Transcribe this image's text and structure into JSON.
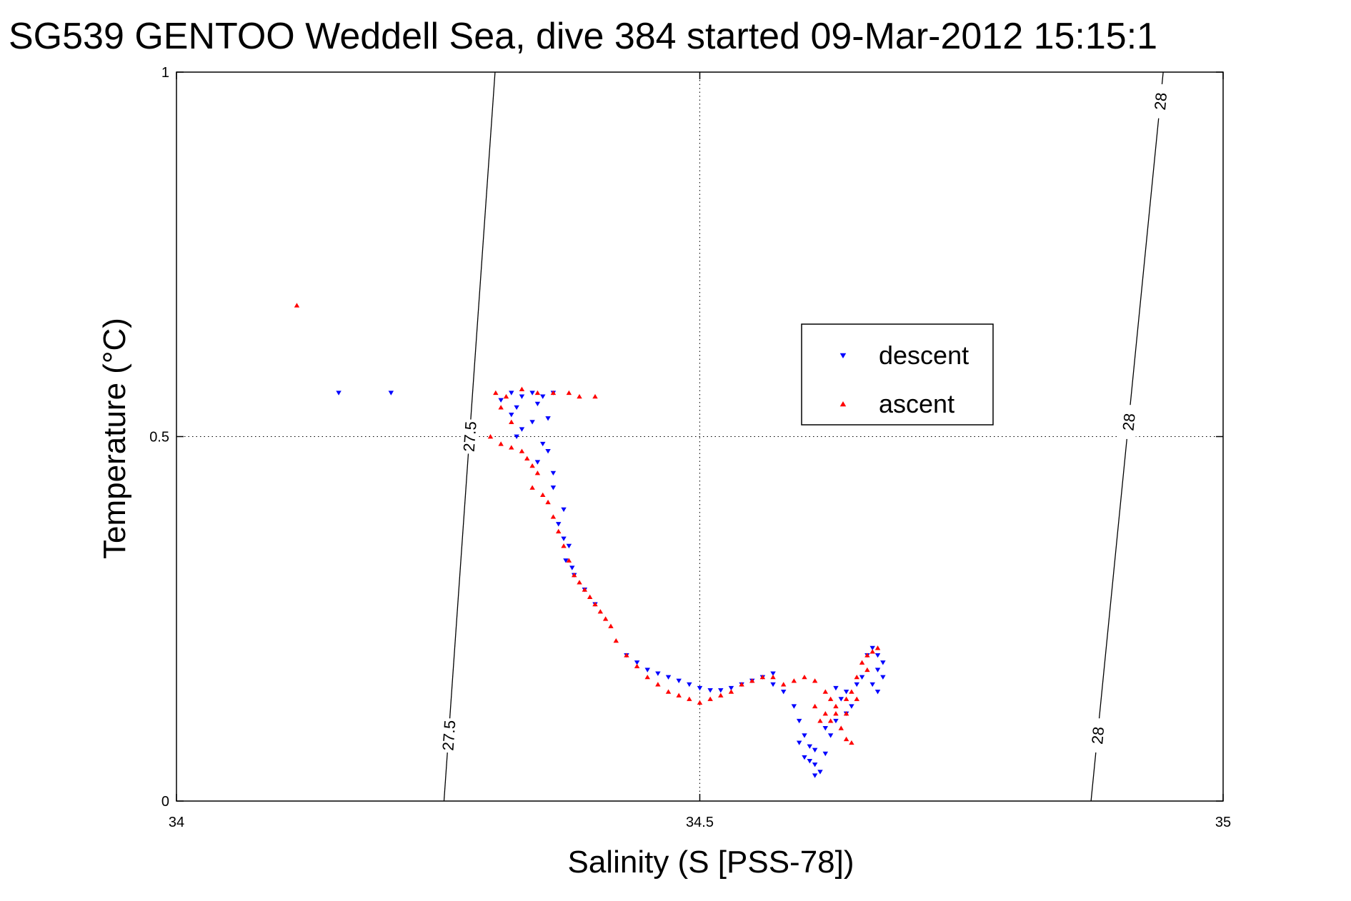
{
  "chart_data": {
    "type": "scatter",
    "title": "SG539 GENTOO Weddell Sea, dive 384 started 09-Mar-2012 15:15:1",
    "xlabel": "Salinity (S [PSS-78])",
    "ylabel": "Temperature (°C)",
    "xlim": [
      34,
      35
    ],
    "ylim": [
      0,
      1
    ],
    "xticks": [
      "34",
      "34.5",
      "35"
    ],
    "yticks": [
      "0",
      "0.5",
      "1"
    ],
    "grid": true,
    "legend_position": "center-right",
    "isopycnals": [
      {
        "label": "27.5",
        "label_positions": [
          [
            34.28,
            0.5
          ],
          [
            34.26,
            0.09
          ]
        ]
      },
      {
        "label": "28",
        "label_positions": [
          [
            34.94,
            0.96
          ],
          [
            34.92,
            0.52
          ],
          [
            34.88,
            0.09
          ]
        ]
      }
    ],
    "series": [
      {
        "name": "descent",
        "color": "#0000ff",
        "marker": "triangle-down",
        "points": [
          [
            34.155,
            0.56
          ],
          [
            34.205,
            0.56
          ],
          [
            34.32,
            0.56
          ],
          [
            34.33,
            0.555
          ],
          [
            34.34,
            0.56
          ],
          [
            34.35,
            0.555
          ],
          [
            34.36,
            0.56
          ],
          [
            34.31,
            0.55
          ],
          [
            34.325,
            0.54
          ],
          [
            34.345,
            0.545
          ],
          [
            34.32,
            0.53
          ],
          [
            34.34,
            0.52
          ],
          [
            34.33,
            0.51
          ],
          [
            34.355,
            0.525
          ],
          [
            34.325,
            0.5
          ],
          [
            34.35,
            0.49
          ],
          [
            34.355,
            0.48
          ],
          [
            34.345,
            0.465
          ],
          [
            34.36,
            0.45
          ],
          [
            34.36,
            0.43
          ],
          [
            34.37,
            0.4
          ],
          [
            34.365,
            0.38
          ],
          [
            34.37,
            0.36
          ],
          [
            34.375,
            0.35
          ],
          [
            34.372,
            0.33
          ],
          [
            34.378,
            0.32
          ],
          [
            34.38,
            0.31
          ],
          [
            34.39,
            0.29
          ],
          [
            34.4,
            0.27
          ],
          [
            34.43,
            0.2
          ],
          [
            34.44,
            0.19
          ],
          [
            34.45,
            0.18
          ],
          [
            34.46,
            0.175
          ],
          [
            34.47,
            0.17
          ],
          [
            34.48,
            0.165
          ],
          [
            34.49,
            0.16
          ],
          [
            34.5,
            0.155
          ],
          [
            34.51,
            0.152
          ],
          [
            34.52,
            0.152
          ],
          [
            34.53,
            0.155
          ],
          [
            34.54,
            0.16
          ],
          [
            34.55,
            0.165
          ],
          [
            34.56,
            0.17
          ],
          [
            34.57,
            0.175
          ],
          [
            34.57,
            0.16
          ],
          [
            34.58,
            0.15
          ],
          [
            34.59,
            0.13
          ],
          [
            34.595,
            0.11
          ],
          [
            34.6,
            0.09
          ],
          [
            34.595,
            0.08
          ],
          [
            34.605,
            0.075
          ],
          [
            34.61,
            0.07
          ],
          [
            34.6,
            0.06
          ],
          [
            34.61,
            0.05
          ],
          [
            34.615,
            0.04
          ],
          [
            34.61,
            0.035
          ],
          [
            34.605,
            0.055
          ],
          [
            34.62,
            0.065
          ],
          [
            34.625,
            0.09
          ],
          [
            34.62,
            0.1
          ],
          [
            34.63,
            0.11
          ],
          [
            34.64,
            0.12
          ],
          [
            34.64,
            0.15
          ],
          [
            34.65,
            0.16
          ],
          [
            34.655,
            0.17
          ],
          [
            34.66,
            0.2
          ],
          [
            34.665,
            0.21
          ],
          [
            34.67,
            0.2
          ],
          [
            34.675,
            0.19
          ],
          [
            34.67,
            0.18
          ],
          [
            34.665,
            0.16
          ],
          [
            34.67,
            0.15
          ],
          [
            34.675,
            0.17
          ],
          [
            34.63,
            0.155
          ],
          [
            34.635,
            0.14
          ],
          [
            34.645,
            0.13
          ]
        ]
      },
      {
        "name": "ascent",
        "color": "#ff0000",
        "marker": "triangle-up",
        "points": [
          [
            34.115,
            0.68
          ],
          [
            34.305,
            0.56
          ],
          [
            34.315,
            0.555
          ],
          [
            34.33,
            0.565
          ],
          [
            34.345,
            0.56
          ],
          [
            34.36,
            0.56
          ],
          [
            34.375,
            0.56
          ],
          [
            34.385,
            0.555
          ],
          [
            34.4,
            0.555
          ],
          [
            34.31,
            0.54
          ],
          [
            34.32,
            0.52
          ],
          [
            34.3,
            0.5
          ],
          [
            34.31,
            0.49
          ],
          [
            34.32,
            0.485
          ],
          [
            34.33,
            0.48
          ],
          [
            34.335,
            0.47
          ],
          [
            34.34,
            0.46
          ],
          [
            34.345,
            0.45
          ],
          [
            34.34,
            0.43
          ],
          [
            34.35,
            0.42
          ],
          [
            34.355,
            0.41
          ],
          [
            34.36,
            0.39
          ],
          [
            34.365,
            0.37
          ],
          [
            34.37,
            0.35
          ],
          [
            34.375,
            0.33
          ],
          [
            34.38,
            0.31
          ],
          [
            34.385,
            0.3
          ],
          [
            34.39,
            0.29
          ],
          [
            34.395,
            0.28
          ],
          [
            34.4,
            0.27
          ],
          [
            34.405,
            0.26
          ],
          [
            34.41,
            0.25
          ],
          [
            34.415,
            0.24
          ],
          [
            34.42,
            0.22
          ],
          [
            34.43,
            0.2
          ],
          [
            34.44,
            0.185
          ],
          [
            34.45,
            0.17
          ],
          [
            34.46,
            0.16
          ],
          [
            34.47,
            0.15
          ],
          [
            34.48,
            0.145
          ],
          [
            34.49,
            0.14
          ],
          [
            34.5,
            0.135
          ],
          [
            34.51,
            0.14
          ],
          [
            34.52,
            0.145
          ],
          [
            34.53,
            0.15
          ],
          [
            34.54,
            0.16
          ],
          [
            34.55,
            0.165
          ],
          [
            34.56,
            0.17
          ],
          [
            34.57,
            0.17
          ],
          [
            34.58,
            0.16
          ],
          [
            34.59,
            0.165
          ],
          [
            34.6,
            0.17
          ],
          [
            34.61,
            0.165
          ],
          [
            34.62,
            0.15
          ],
          [
            34.63,
            0.13
          ],
          [
            34.625,
            0.11
          ],
          [
            34.635,
            0.1
          ],
          [
            34.64,
            0.085
          ],
          [
            34.645,
            0.08
          ],
          [
            34.63,
            0.12
          ],
          [
            34.64,
            0.14
          ],
          [
            34.645,
            0.15
          ],
          [
            34.65,
            0.17
          ],
          [
            34.655,
            0.19
          ],
          [
            34.66,
            0.2
          ],
          [
            34.665,
            0.205
          ],
          [
            34.67,
            0.21
          ],
          [
            34.66,
            0.18
          ],
          [
            34.65,
            0.14
          ],
          [
            34.64,
            0.12
          ],
          [
            34.62,
            0.12
          ],
          [
            34.61,
            0.13
          ],
          [
            34.615,
            0.11
          ],
          [
            34.625,
            0.14
          ]
        ]
      }
    ]
  }
}
